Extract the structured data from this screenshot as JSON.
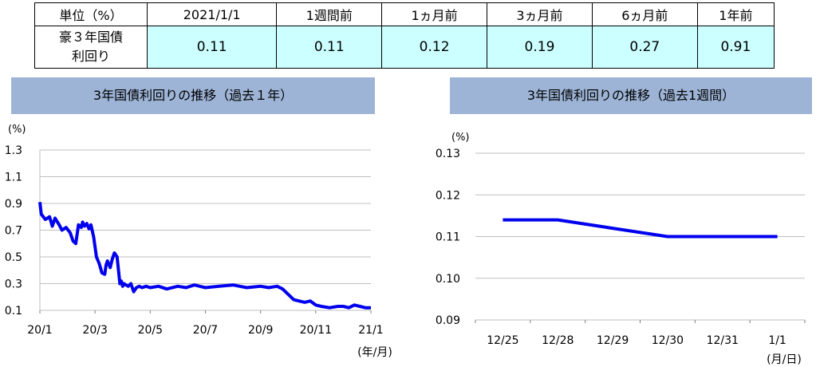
{
  "yield_table": {
    "headers": [
      "単位（%）",
      "2021/1/1",
      "1週間前",
      "1ヵ月前",
      "3ヵ月前",
      "6ヵ月前",
      "1年前"
    ],
    "row_label_line1": "豪３年国債",
    "row_label_line2": "利回り",
    "values": [
      "0.11",
      "0.11",
      "0.12",
      "0.19",
      "0.27",
      "0.91"
    ]
  },
  "chart_data": [
    {
      "type": "line",
      "title": "3年国債利回りの推移（過去１年）",
      "ylabel": "(%)",
      "xlabel": "(年/月)",
      "x_ticks": [
        "20/1",
        "20/3",
        "20/5",
        "20/7",
        "20/9",
        "20/11",
        "21/1"
      ],
      "y_ticks": [
        "1.3",
        "1.1",
        "0.9",
        "0.7",
        "0.5",
        "0.3",
        "0.1"
      ],
      "ylim": [
        0.1,
        1.3
      ],
      "xlim": [
        0,
        12
      ],
      "grid": true,
      "color": "#0000ee",
      "series": [
        {
          "x": [
            0.0,
            0.05,
            0.2,
            0.35,
            0.45,
            0.55,
            0.7,
            0.8,
            0.95,
            1.1,
            1.2,
            1.3,
            1.4,
            1.5,
            1.55,
            1.62,
            1.7,
            1.78,
            1.85,
            1.95,
            2.05,
            2.15,
            2.25,
            2.35,
            2.4,
            2.45,
            2.55,
            2.62,
            2.7,
            2.8,
            2.9,
            2.95,
            3.0,
            3.05,
            3.12,
            3.2,
            3.3,
            3.4,
            3.5,
            3.6,
            3.7,
            3.85,
            4.0,
            4.3,
            4.6,
            5.0,
            5.3,
            5.6,
            6.0,
            6.5,
            7.0,
            7.5,
            8.0,
            8.3,
            8.6,
            8.8,
            9.0,
            9.2,
            9.4,
            9.6,
            9.8,
            10.0,
            10.2,
            10.5,
            10.8,
            11.0,
            11.2,
            11.4,
            11.6,
            11.8,
            12.0
          ],
          "y": [
            0.91,
            0.82,
            0.78,
            0.8,
            0.73,
            0.79,
            0.74,
            0.7,
            0.72,
            0.68,
            0.62,
            0.6,
            0.74,
            0.72,
            0.76,
            0.73,
            0.75,
            0.71,
            0.74,
            0.65,
            0.5,
            0.45,
            0.38,
            0.37,
            0.44,
            0.47,
            0.42,
            0.48,
            0.53,
            0.5,
            0.3,
            0.32,
            0.28,
            0.3,
            0.29,
            0.28,
            0.3,
            0.24,
            0.27,
            0.28,
            0.27,
            0.28,
            0.27,
            0.28,
            0.26,
            0.28,
            0.27,
            0.29,
            0.27,
            0.28,
            0.29,
            0.27,
            0.28,
            0.27,
            0.28,
            0.26,
            0.22,
            0.18,
            0.17,
            0.16,
            0.17,
            0.14,
            0.13,
            0.12,
            0.13,
            0.13,
            0.12,
            0.14,
            0.13,
            0.12,
            0.12
          ]
        }
      ]
    },
    {
      "type": "line",
      "title": "3年国債利回りの推移（過去1週間）",
      "ylabel": "(%)",
      "xlabel": "(月/日)",
      "categories": [
        "12/25",
        "12/28",
        "12/29",
        "12/30",
        "12/31",
        "1/1"
      ],
      "y_ticks": [
        "0.13",
        "0.12",
        "0.11",
        "0.10",
        "0.09"
      ],
      "ylim": [
        0.09,
        0.13
      ],
      "grid": true,
      "color": "#0000ee",
      "series": [
        {
          "values": [
            0.114,
            0.114,
            0.112,
            0.11,
            0.11,
            0.11
          ]
        }
      ]
    }
  ]
}
